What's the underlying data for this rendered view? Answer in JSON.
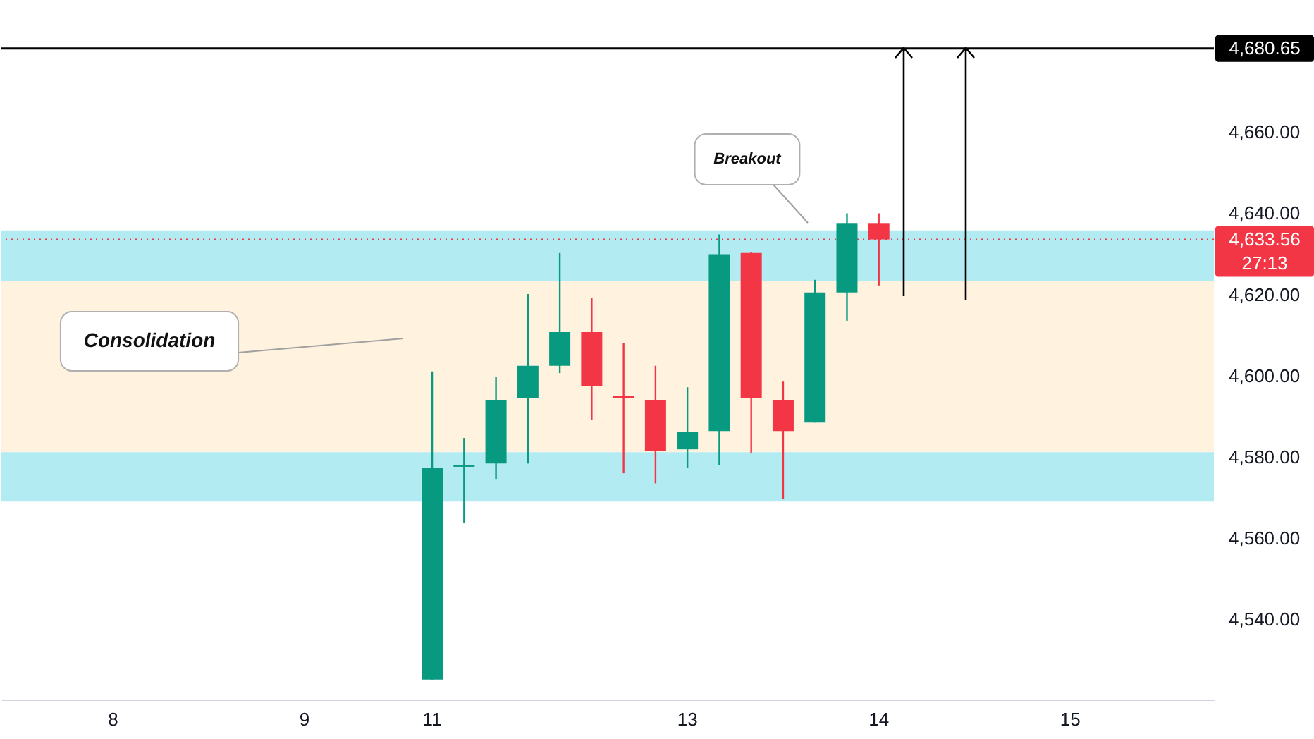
{
  "chart_data": {
    "type": "candlestick",
    "categories": [
      null,
      null,
      null,
      "8",
      null,
      null,
      null,
      null,
      null,
      "9",
      null,
      null,
      null,
      "11",
      null,
      null,
      null,
      null,
      null,
      null,
      null,
      "13",
      null,
      null,
      null,
      null,
      null,
      "14",
      null,
      null,
      null,
      null,
      null,
      "15",
      null,
      null,
      null,
      null
    ],
    "ohlc": [
      null,
      null,
      null,
      null,
      null,
      null,
      null,
      null,
      null,
      null,
      null,
      null,
      null,
      [
        4525,
        4601,
        4525,
        4577.3
      ],
      [
        4577.5,
        4584.6,
        4563.7,
        4578
      ],
      [
        4578.3,
        4599.6,
        4574.5,
        4594
      ],
      [
        4594.4,
        4620.1,
        4578.3,
        4602.4
      ],
      [
        4602.4,
        4630.2,
        4600.6,
        4610.7
      ],
      [
        4610.7,
        4619.1,
        4589.1,
        4597.5
      ],
      [
        4595,
        4608,
        4575.9,
        4594.5
      ],
      [
        4594,
        4602.4,
        4573.4,
        4581.5
      ],
      [
        4581.8,
        4597.1,
        4577.3,
        4586
      ],
      [
        4586.3,
        4634.8,
        4578,
        4629.9
      ],
      [
        4630.2,
        4630.5,
        4580.8,
        4594.4
      ],
      [
        4594,
        4598.5,
        4569.6,
        4586.3
      ],
      [
        4588.4,
        4623.6,
        4588.4,
        4620.5
      ],
      [
        4620.5,
        4640,
        4613.5,
        4637.6
      ],
      [
        4637.6,
        4640,
        4622.2,
        4633.56
      ],
      null,
      null,
      null,
      null,
      null,
      null,
      null,
      null,
      null,
      null
    ],
    "colors": [
      null,
      null,
      null,
      null,
      null,
      null,
      null,
      null,
      null,
      null,
      null,
      null,
      null,
      "#089981",
      "#089981",
      "#089981",
      "#089981",
      "#089981",
      "#f23645",
      "#f23645",
      "#f23645",
      "#089981",
      "#089981",
      "#f23645",
      "#f23645",
      "#089981",
      "#089981",
      "#f23645",
      null,
      null,
      null,
      null,
      null,
      null,
      null,
      null,
      null,
      null
    ],
    "bands": [
      {
        "axis": "y",
        "from": 4623.3,
        "to": 4635.8,
        "color": "#b2ebf2"
      },
      {
        "axis": "y",
        "from": 4581.1,
        "to": 4623.3,
        "color": "#fff3e0"
      },
      {
        "axis": "y",
        "from": 4568.9,
        "to": 4581.1,
        "color": "#b2ebf2"
      }
    ],
    "ref_lines": [
      {
        "axis": "y",
        "value": 4680.65,
        "label": "4,680.65",
        "color": "#000000",
        "line_style": "solid"
      },
      {
        "axis": "y",
        "value": 4633.56,
        "label": "4,633.56\n27:13",
        "color": "#f23645",
        "line_style": "dotted"
      }
    ],
    "annotations": [
      "Consolidation",
      "Breakout"
    ],
    "ylim": [
      4520.1,
      4692.6
    ],
    "yticks": [
      {
        "value": 4540,
        "label": "4,540.00"
      },
      {
        "value": 4560,
        "label": "4,560.00"
      },
      {
        "value": 4580,
        "label": "4,580.00"
      },
      {
        "value": 4600,
        "label": "4,600.00"
      },
      {
        "value": 4620,
        "label": "4,620.00"
      },
      {
        "value": 4640,
        "label": "4,640.00"
      },
      {
        "value": 4660,
        "label": "4,660.00"
      }
    ],
    "grid": false
  }
}
